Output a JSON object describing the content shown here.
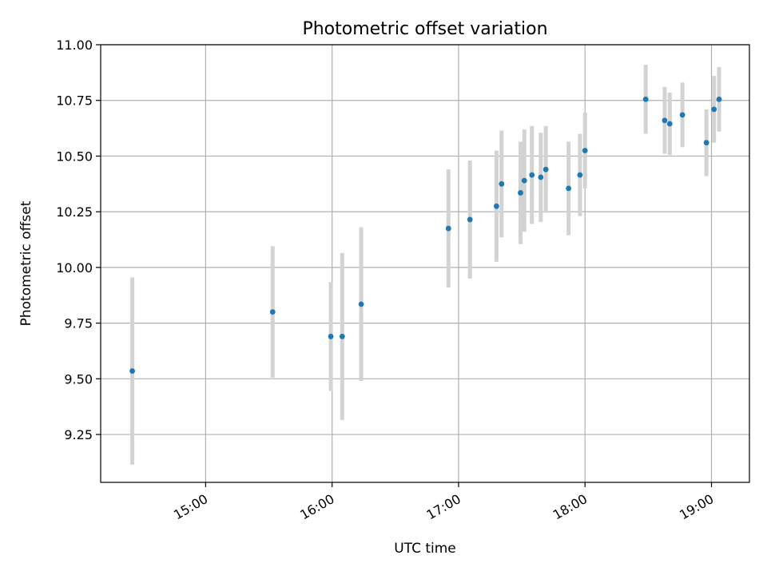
{
  "chart_data": {
    "type": "scatter",
    "title": "Photometric offset variation",
    "xlabel": "UTC time",
    "ylabel": "Photometric offset",
    "x_unit": "hours UTC",
    "xlim": [
      14.17,
      19.3
    ],
    "ylim": [
      9.035,
      11.0
    ],
    "grid": true,
    "xticks": [
      {
        "value": 15,
        "label": "15:00"
      },
      {
        "value": 16,
        "label": "16:00"
      },
      {
        "value": 17,
        "label": "17:00"
      },
      {
        "value": 18,
        "label": "18:00"
      },
      {
        "value": 19,
        "label": "19:00"
      }
    ],
    "yticks": [
      {
        "value": 9.25,
        "label": "9.25"
      },
      {
        "value": 9.5,
        "label": "9.50"
      },
      {
        "value": 9.75,
        "label": "9.75"
      },
      {
        "value": 10.0,
        "label": "10.00"
      },
      {
        "value": 10.25,
        "label": "10.25"
      },
      {
        "value": 10.5,
        "label": "10.50"
      },
      {
        "value": 10.75,
        "label": "10.75"
      },
      {
        "value": 11.0,
        "label": "11.00"
      }
    ],
    "point_color": "#1f77b4",
    "errorbar_color": "#d3d3d3",
    "points": [
      {
        "x": 14.42,
        "y": 9.535,
        "lo": 9.115,
        "hi": 9.955
      },
      {
        "x": 15.53,
        "y": 9.8,
        "lo": 9.505,
        "hi": 10.095
      },
      {
        "x": 15.99,
        "y": 9.69,
        "lo": 9.445,
        "hi": 9.935
      },
      {
        "x": 16.08,
        "y": 9.69,
        "lo": 9.315,
        "hi": 10.065
      },
      {
        "x": 16.23,
        "y": 9.835,
        "lo": 9.49,
        "hi": 10.18
      },
      {
        "x": 16.92,
        "y": 10.175,
        "lo": 9.91,
        "hi": 10.44
      },
      {
        "x": 17.09,
        "y": 10.215,
        "lo": 9.95,
        "hi": 10.48
      },
      {
        "x": 17.3,
        "y": 10.275,
        "lo": 10.025,
        "hi": 10.525
      },
      {
        "x": 17.34,
        "y": 10.375,
        "lo": 10.135,
        "hi": 10.615
      },
      {
        "x": 17.49,
        "y": 10.335,
        "lo": 10.105,
        "hi": 10.565
      },
      {
        "x": 17.52,
        "y": 10.39,
        "lo": 10.16,
        "hi": 10.62
      },
      {
        "x": 17.58,
        "y": 10.415,
        "lo": 10.195,
        "hi": 10.635
      },
      {
        "x": 17.65,
        "y": 10.405,
        "lo": 10.205,
        "hi": 10.605
      },
      {
        "x": 17.69,
        "y": 10.44,
        "lo": 10.245,
        "hi": 10.635
      },
      {
        "x": 17.87,
        "y": 10.355,
        "lo": 10.145,
        "hi": 10.565
      },
      {
        "x": 17.96,
        "y": 10.415,
        "lo": 10.23,
        "hi": 10.6
      },
      {
        "x": 18.0,
        "y": 10.525,
        "lo": 10.355,
        "hi": 10.695
      },
      {
        "x": 18.48,
        "y": 10.755,
        "lo": 10.6,
        "hi": 10.91
      },
      {
        "x": 18.63,
        "y": 10.66,
        "lo": 10.51,
        "hi": 10.81
      },
      {
        "x": 18.67,
        "y": 10.645,
        "lo": 10.505,
        "hi": 10.785
      },
      {
        "x": 18.77,
        "y": 10.685,
        "lo": 10.54,
        "hi": 10.83
      },
      {
        "x": 18.96,
        "y": 10.56,
        "lo": 10.41,
        "hi": 10.71
      },
      {
        "x": 19.02,
        "y": 10.71,
        "lo": 10.56,
        "hi": 10.86
      },
      {
        "x": 19.06,
        "y": 10.755,
        "lo": 10.61,
        "hi": 10.9
      }
    ]
  }
}
